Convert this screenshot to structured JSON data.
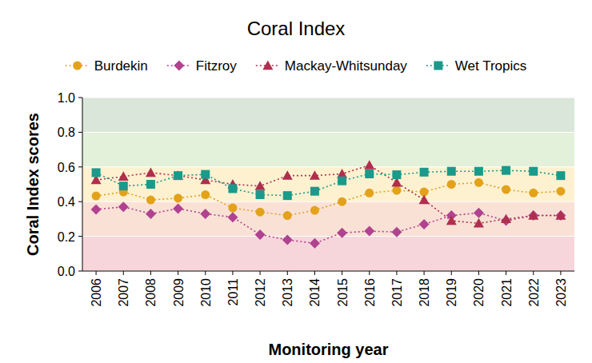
{
  "chart_data": {
    "type": "line",
    "title": "Coral Index",
    "x_label": "Monitoring year",
    "y_label": "Coral Index scores",
    "categories": [
      "2006",
      "2007",
      "2008",
      "2009",
      "2010",
      "2011",
      "2012",
      "2013",
      "2014",
      "2015",
      "2016",
      "2017",
      "2018",
      "2019",
      "2020",
      "2021",
      "2022",
      "2023"
    ],
    "series": [
      {
        "name": "Burdekin",
        "color": "#e3a21a",
        "marker": "circle",
        "line_style": "dotted",
        "values": [
          0.433,
          0.456,
          0.41,
          0.42,
          0.44,
          0.364,
          0.34,
          0.32,
          0.35,
          0.4,
          0.45,
          0.465,
          0.456,
          0.5,
          0.51,
          0.47,
          0.45,
          0.46
        ]
      },
      {
        "name": "Fitzroy",
        "color": "#b0428f",
        "marker": "diamond",
        "line_style": "dotted",
        "values": [
          0.355,
          0.37,
          0.33,
          0.36,
          0.33,
          0.31,
          0.21,
          0.18,
          0.16,
          0.22,
          0.23,
          0.225,
          0.27,
          0.32,
          0.335,
          0.29,
          0.32,
          0.32
        ]
      },
      {
        "name": "Mackay-Whitsunday",
        "color": "#b02e4e",
        "marker": "triangle",
        "line_style": "dotted",
        "values": [
          0.525,
          0.545,
          0.567,
          0.55,
          0.525,
          0.5,
          0.49,
          0.55,
          0.55,
          0.56,
          0.61,
          0.51,
          0.41,
          0.29,
          0.275,
          0.3,
          0.32,
          0.32
        ]
      },
      {
        "name": "Wet Tropics",
        "color": "#1a9a8a",
        "marker": "square",
        "line_style": "dotted",
        "values": [
          0.567,
          0.49,
          0.5,
          0.55,
          0.557,
          0.475,
          0.44,
          0.435,
          0.46,
          0.52,
          0.56,
          0.555,
          0.57,
          0.575,
          0.575,
          0.58,
          0.575,
          0.55
        ]
      }
    ],
    "ylim": [
      0,
      1
    ],
    "yticks": [
      {
        "value": 0,
        "label": "0.0"
      },
      0.2,
      0.4,
      0.6,
      0.8,
      {
        "value": 1,
        "label": "1.0"
      }
    ],
    "grid": true,
    "legend": "top"
  }
}
